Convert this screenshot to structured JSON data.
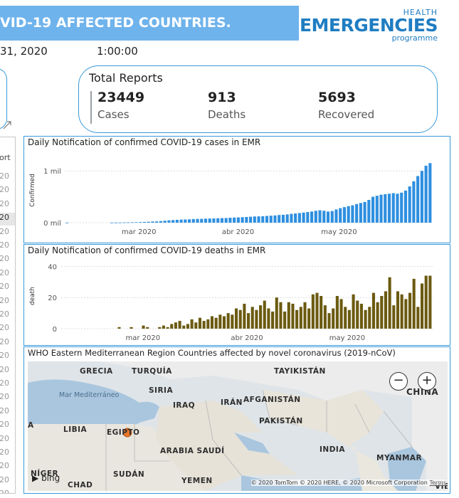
{
  "header": {
    "title": "VID-19 AFFECTED COUNTRIES.",
    "date": "31, 2020",
    "time": "1:00:00"
  },
  "logo": {
    "line1": "HEALTH",
    "line2": "EMERGENCIES",
    "line3": "programme"
  },
  "totals": {
    "title": "Total Reports",
    "cases_value": "23449",
    "cases_label": "Cases",
    "deaths_value": "913",
    "deaths_label": "Deaths",
    "recovered_value": "5693",
    "recovered_label": "Recovered"
  },
  "left_list": {
    "header": "ort",
    "rows": [
      "20",
      "20",
      "20",
      "20",
      "20",
      "20",
      "20",
      "20",
      "20",
      "20",
      "20",
      "20",
      "20",
      "20",
      "20",
      "20",
      "20",
      "20",
      "20",
      "20",
      "20",
      "20",
      "20",
      "20"
    ],
    "selected_index": 3
  },
  "colors": {
    "accent": "#3a9ad9",
    "cases_bar": "#2e8fe0",
    "deaths_bar": "#6b5a10",
    "banner": "#6fb3ec"
  },
  "chart_data": [
    {
      "type": "bar",
      "title": "Daily Notification of confirmed COVID-19 cases in EMR",
      "ylabel": "Confirmed",
      "x_ticks": [
        "mar 2020",
        "abr 2020",
        "may 2020"
      ],
      "y_ticks": [
        "0 mil",
        "1 mil"
      ],
      "values_thousands": [
        1,
        0,
        0,
        0,
        0,
        0,
        0,
        0,
        0,
        0,
        0,
        1,
        2,
        3,
        5,
        6,
        8,
        9,
        12,
        14,
        18,
        22,
        25,
        30,
        38,
        45,
        50,
        55,
        60,
        62,
        65,
        70,
        72,
        74,
        78,
        80,
        82,
        85,
        88,
        90,
        95,
        98,
        102,
        106,
        110,
        115,
        120,
        122,
        125,
        130,
        135,
        140,
        148,
        152,
        160,
        170,
        178,
        186,
        195,
        205,
        215,
        230,
        240,
        230,
        215,
        225,
        255,
        280,
        300,
        320,
        335,
        360,
        380,
        400,
        440,
        500,
        520,
        540,
        550,
        560,
        570,
        560,
        580,
        620,
        700,
        800,
        900,
        1000,
        1100,
        1150
      ],
      "ylim": [
        0,
        1250
      ]
    },
    {
      "type": "bar",
      "title": "Daily Notification of confirmed COVID-19 deaths in EMR",
      "ylabel": "death",
      "x_ticks": [
        "mar 2020",
        "abr 2020",
        "may 2020"
      ],
      "y_ticks": [
        "0",
        "20",
        "40"
      ],
      "values": [
        0,
        0,
        0,
        0,
        0,
        0,
        0,
        0,
        0,
        0,
        0,
        0,
        0,
        0,
        1,
        0,
        0,
        1,
        0,
        0,
        2,
        1,
        0,
        0,
        1,
        2,
        1,
        3,
        4,
        5,
        2,
        3,
        6,
        4,
        7,
        5,
        6,
        8,
        7,
        9,
        8,
        10,
        9,
        13,
        12,
        16,
        10,
        14,
        12,
        15,
        18,
        13,
        11,
        20,
        17,
        11,
        17,
        16,
        12,
        14,
        17,
        13,
        22,
        23,
        21,
        15,
        10,
        13,
        21,
        19,
        14,
        12,
        22,
        18,
        16,
        12,
        14,
        23,
        17,
        21,
        24,
        33,
        15,
        24,
        22,
        19,
        23,
        32,
        14,
        29,
        34,
        34
      ],
      "ylim": [
        0,
        42
      ]
    }
  ],
  "map": {
    "title": "WHO Eastern Mediterranean Region Countries affected by novel coronavirus (2019-nCoV)",
    "labels": [
      "GRECIA",
      "TURQUÍA",
      "TAYIKISTÁN",
      "SIRIA",
      "IRAQ",
      "IRÁN",
      "AFGANISTÁN",
      "CHINA",
      "LIBIA",
      "EGIPTO",
      "PAKISTÁN",
      "ARABIA SAUDÍ",
      "INDIA",
      "MYANMAR",
      "SUDÁN",
      "YEMEN",
      "NÍGER",
      "CHAD",
      "VIE",
      "A"
    ],
    "sea_label": "Mar Mediterráneo",
    "zoom_out": "−",
    "zoom_in": "+",
    "bing_label": "bing",
    "attribution": "© 2020 TomTom © 2020 HERE, © 2020 Microsoft Corporation",
    "terms": "Terms"
  }
}
